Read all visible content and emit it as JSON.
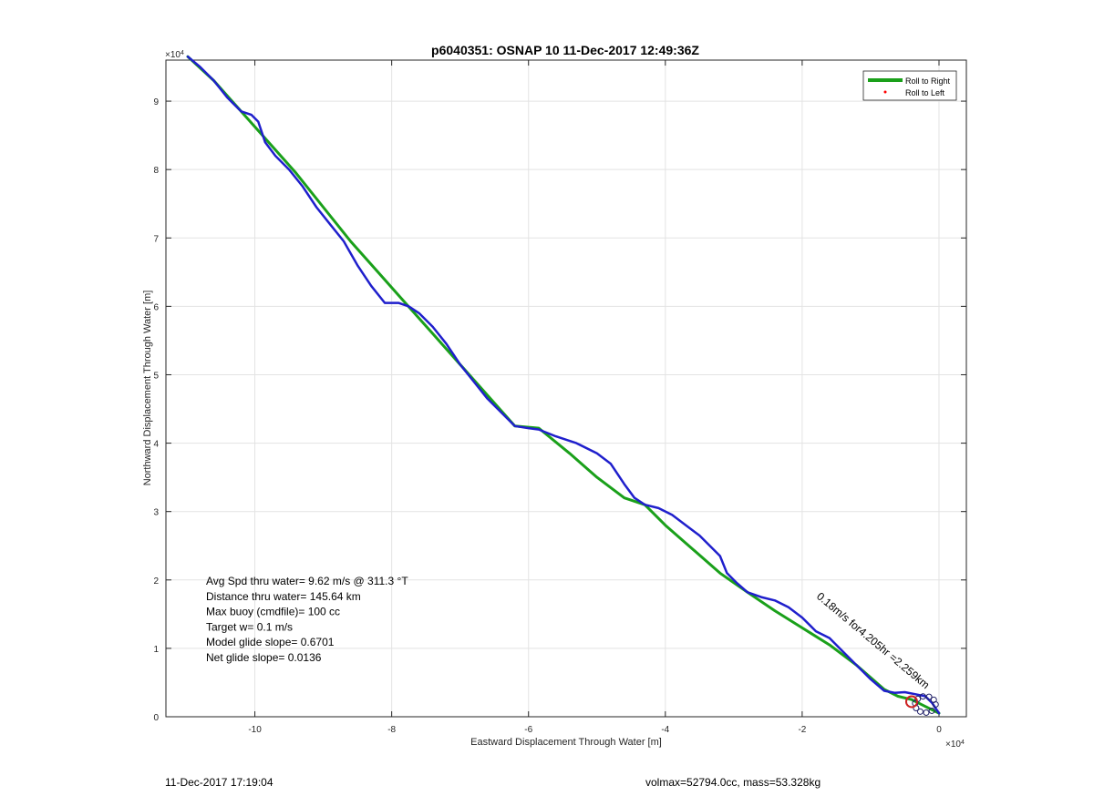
{
  "chart_data": {
    "type": "line",
    "title": "p6040351: OSNAP 10 11-Dec-2017 12:49:36Z",
    "xlabel": "Eastward Displacement Through Water [m]",
    "ylabel": "Northward Displacement Through Water [m]",
    "x_exponent_label": "×10^4",
    "y_exponent_label": "×10^4",
    "xlim": [
      -11.3,
      0.4
    ],
    "ylim": [
      0,
      9.6
    ],
    "x_ticks": [
      -10,
      -8,
      -6,
      -4,
      -2,
      0
    ],
    "x_tick_labels": [
      "-10",
      "-8",
      "-6",
      "-4",
      "-2",
      "0"
    ],
    "y_ticks": [
      0,
      1,
      2,
      3,
      4,
      5,
      6,
      7,
      8,
      9
    ],
    "y_tick_labels": [
      "0",
      "1",
      "2",
      "3",
      "4",
      "5",
      "6",
      "7",
      "8",
      "9"
    ],
    "grid": true,
    "legend_position": "top-right",
    "legend": [
      {
        "label": "Roll to Right",
        "color": "#1aa01a",
        "style": "line"
      },
      {
        "label": "Roll to Left",
        "color": "#ff0000",
        "style": "dot"
      }
    ],
    "series": [
      {
        "name": "Roll to Right",
        "color": "#1aa01a",
        "x": [
          -10.98,
          -10.6,
          -10.2,
          -9.8,
          -9.4,
          -9.0,
          -8.6,
          -8.2,
          -7.8,
          -7.4,
          -7.0,
          -6.6,
          -6.2,
          -5.85,
          -5.4,
          -5.0,
          -4.6,
          -4.3,
          -4.0,
          -3.6,
          -3.2,
          -2.8,
          -2.4,
          -2.0,
          -1.6,
          -1.2,
          -0.8,
          -0.6,
          -0.4,
          -0.2,
          0.0
        ],
        "y": [
          9.65,
          9.3,
          8.85,
          8.4,
          7.95,
          7.45,
          6.95,
          6.5,
          6.05,
          5.6,
          5.15,
          4.7,
          4.25,
          4.22,
          3.85,
          3.5,
          3.2,
          3.1,
          2.8,
          2.45,
          2.1,
          1.82,
          1.55,
          1.3,
          1.05,
          0.75,
          0.4,
          0.3,
          0.25,
          0.15,
          0.05
        ]
      },
      {
        "name": "",
        "color": "#1f1fcc",
        "x": [
          -10.98,
          -10.8,
          -10.6,
          -10.4,
          -10.2,
          -10.05,
          -9.95,
          -9.85,
          -9.7,
          -9.5,
          -9.3,
          -9.1,
          -8.9,
          -8.7,
          -8.5,
          -8.3,
          -8.1,
          -7.9,
          -7.75,
          -7.6,
          -7.4,
          -7.2,
          -7.0,
          -6.8,
          -6.6,
          -6.4,
          -6.2,
          -6.0,
          -5.85,
          -5.6,
          -5.3,
          -5.0,
          -4.8,
          -4.6,
          -4.45,
          -4.3,
          -4.1,
          -3.9,
          -3.7,
          -3.5,
          -3.3,
          -3.2,
          -3.1,
          -2.95,
          -2.8,
          -2.6,
          -2.4,
          -2.2,
          -2.0,
          -1.8,
          -1.6,
          -1.4,
          -1.2,
          -1.0,
          -0.8,
          -0.65,
          -0.5,
          -0.35,
          -0.2,
          -0.1,
          0.0
        ],
        "y": [
          9.65,
          9.5,
          9.3,
          9.05,
          8.85,
          8.8,
          8.7,
          8.4,
          8.2,
          8.0,
          7.75,
          7.45,
          7.2,
          6.95,
          6.6,
          6.3,
          6.05,
          6.05,
          6.0,
          5.9,
          5.7,
          5.45,
          5.15,
          4.9,
          4.65,
          4.45,
          4.25,
          4.22,
          4.2,
          4.1,
          4.0,
          3.85,
          3.7,
          3.4,
          3.2,
          3.1,
          3.05,
          2.95,
          2.8,
          2.65,
          2.45,
          2.35,
          2.1,
          1.95,
          1.82,
          1.75,
          1.7,
          1.6,
          1.45,
          1.25,
          1.15,
          0.95,
          0.75,
          0.55,
          0.38,
          0.35,
          0.36,
          0.33,
          0.3,
          0.2,
          0.05
        ]
      }
    ],
    "markers": [
      {
        "name": "surfacing-marker",
        "x": -0.4,
        "y": 0.22,
        "color": "#cc2222",
        "shape": "circle"
      }
    ],
    "text_annotations": [
      "Avg Spd thru water=  9.62 m/s @ 311.3 °T",
      "Distance thru water= 145.64 km",
      "Max buoy (cmdfile)= 100 cc",
      "Target w= 0.1 m/s",
      "Model glide slope= 0.6701",
      "Net glide slope= 0.0136"
    ],
    "rotated_annotation": "0.18m/s for4.205hr =2.259km"
  },
  "footer": {
    "left": "11-Dec-2017 17:19:04",
    "right": "volmax=52794.0cc, mass=53.328kg"
  }
}
